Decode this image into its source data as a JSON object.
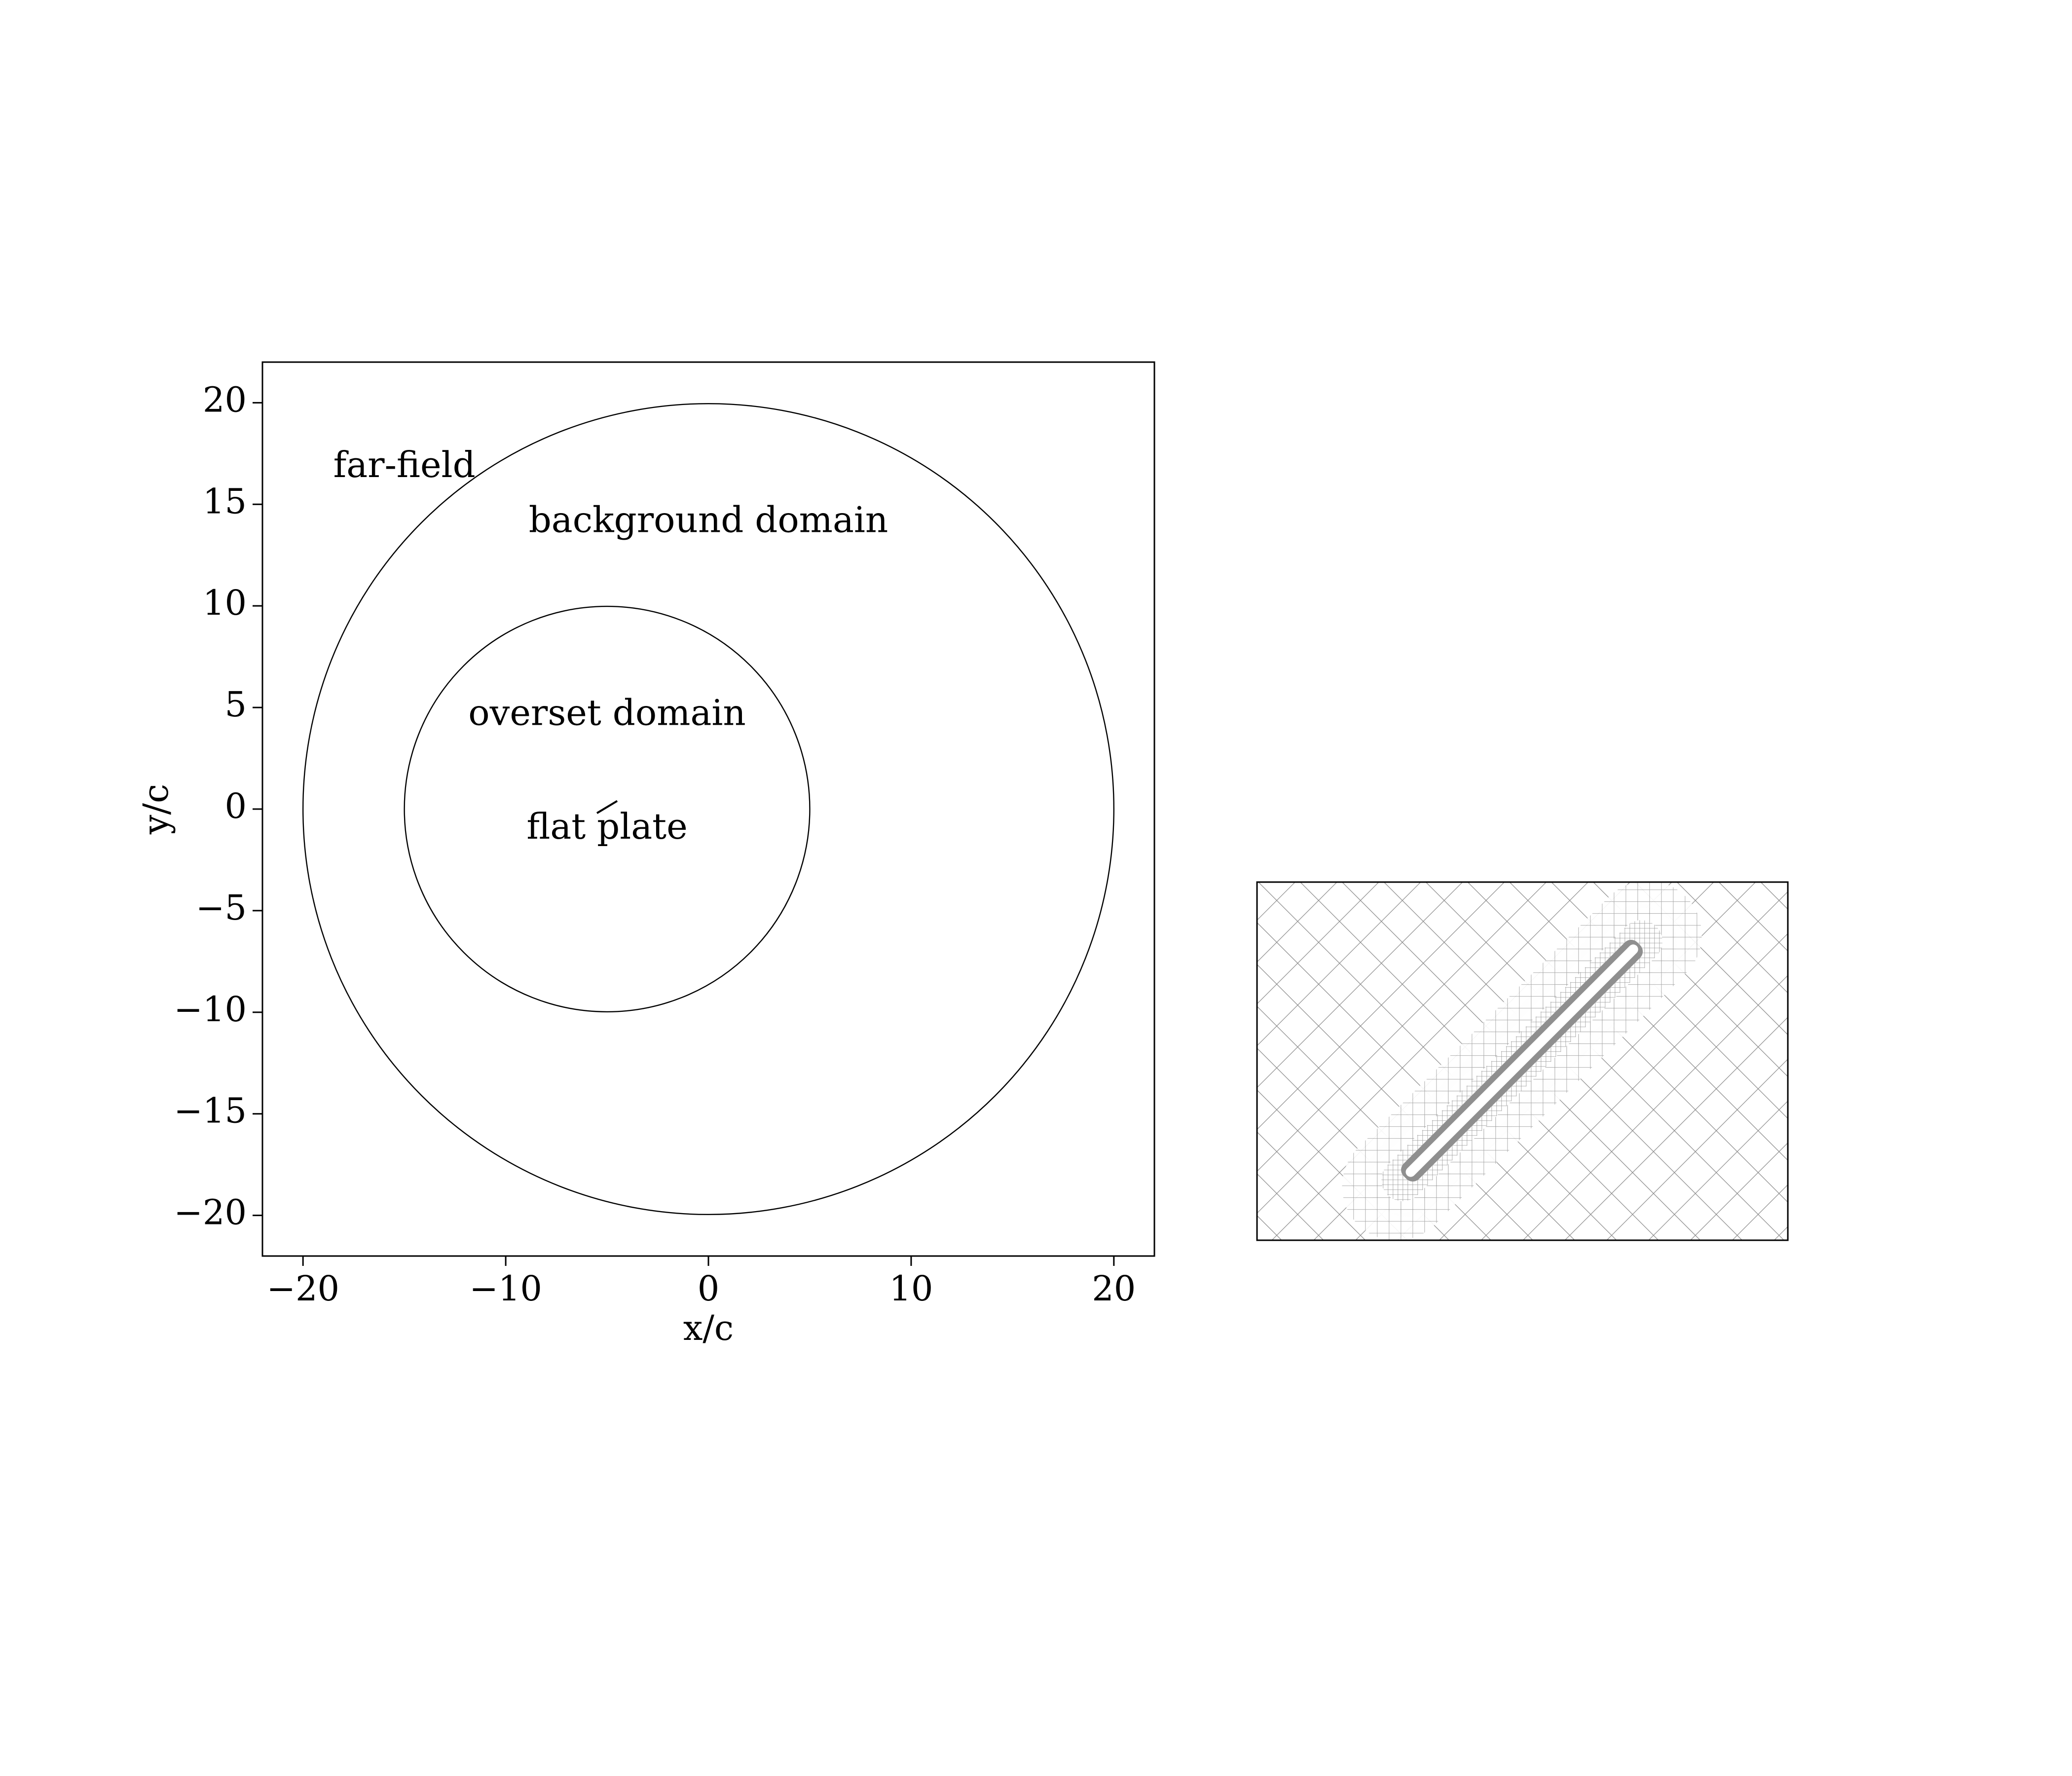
{
  "chart_data": [
    {
      "type": "diagram",
      "title": "",
      "xlabel": "x/c",
      "ylabel": "y/c",
      "xlim": [
        -22,
        22
      ],
      "ylim": [
        -22,
        22
      ],
      "xticks": [
        -20,
        -10,
        0,
        10,
        20
      ],
      "yticks": [
        20,
        15,
        10,
        5,
        0,
        -5,
        -10,
        -15,
        -20
      ],
      "circles": [
        {
          "name": "far-field boundary",
          "cx": 0,
          "cy": 0,
          "r": 20
        },
        {
          "name": "overset boundary",
          "cx": -5,
          "cy": 0,
          "r": 10
        }
      ],
      "plate": {
        "x0": -5.5,
        "y0": -0.2,
        "x1": -4.5,
        "y1": 0.4
      },
      "annotations": [
        {
          "text": "far-field",
          "x": -15,
          "y": 16.8
        },
        {
          "text": "background domain",
          "x": 0,
          "y": 14.1
        },
        {
          "text": "overset domain",
          "x": -5,
          "y": 4.6
        },
        {
          "text": "flat plate",
          "x": -5,
          "y": -1.0
        }
      ]
    },
    {
      "type": "mesh",
      "description_visible": false,
      "plate_angle_deg": 45
    }
  ]
}
